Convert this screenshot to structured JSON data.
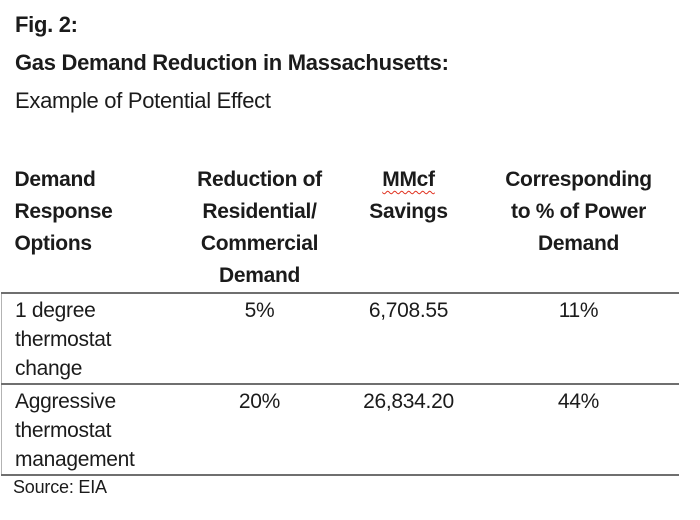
{
  "page": {
    "figure_label": "Fig. 2:",
    "title": "Gas Demand Reduction in Massachusetts:",
    "subtitle": "Example of Potential Effect",
    "source": "Source: EIA"
  },
  "table": {
    "header": {
      "col1": [
        "Demand",
        "Response",
        "Options"
      ],
      "col2": [
        "Reduction of",
        "Residential/",
        "Commercial",
        "Demand"
      ],
      "col3": [
        "MMcf",
        "Savings"
      ],
      "col4": [
        "Corresponding",
        "to % of Power",
        "Demand"
      ]
    },
    "rows": [
      {
        "option": [
          "1 degree",
          "thermostat",
          "change"
        ],
        "reduction": "5%",
        "savings": "6,708.55",
        "power": "11%"
      },
      {
        "option": [
          "Aggressive",
          "thermostat",
          "management"
        ],
        "reduction": "20%",
        "savings": "26,834.20",
        "power": "44%"
      }
    ]
  },
  "chart_data": {
    "type": "table",
    "title": "Fig. 2: Gas Demand Reduction in Massachusetts: Example of Potential Effect",
    "columns": [
      "Demand Response Options",
      "Reduction of Residential/ Commercial Demand",
      "MMcf Savings",
      "Corresponding to % of Power Demand"
    ],
    "rows": [
      [
        "1 degree thermostat change",
        "5%",
        "6,708.55",
        "11%"
      ],
      [
        "Aggressive thermostat management",
        "20%",
        "26,834.20",
        "44%"
      ]
    ],
    "source": "Source: EIA"
  },
  "colors": {
    "text": "#1b1b1b",
    "rule": "#6f6f6f",
    "left_rule": "#b3b3b3",
    "spellcheck_underline": "#e0301e",
    "background": "#ffffff"
  }
}
